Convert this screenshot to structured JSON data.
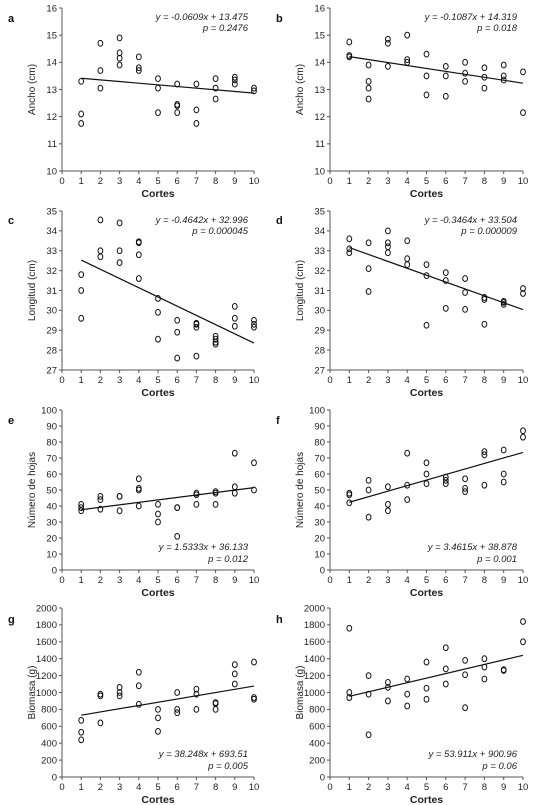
{
  "chart_data": [
    {
      "panel": "a",
      "type": "scatter",
      "xlabel": "Cortes",
      "ylabel": "Ancho (cm)",
      "xlim": [
        0,
        10
      ],
      "ylim": [
        10,
        16
      ],
      "xticks": [
        0,
        1,
        2,
        3,
        4,
        5,
        6,
        7,
        8,
        9,
        10
      ],
      "yticks": [
        10,
        11,
        12,
        13,
        14,
        15,
        16
      ],
      "x": [
        1,
        1,
        1,
        2,
        2,
        2,
        3,
        3,
        3,
        3,
        4,
        4,
        4,
        5,
        5,
        5,
        6,
        6,
        6,
        6,
        7,
        7,
        7,
        8,
        8,
        8,
        9,
        9,
        9,
        10,
        10
      ],
      "y": [
        11.75,
        12.1,
        13.3,
        13.05,
        13.7,
        14.7,
        13.9,
        14.15,
        14.35,
        14.9,
        13.7,
        13.8,
        14.2,
        12.15,
        13.05,
        13.4,
        12.15,
        12.4,
        12.45,
        13.2,
        11.75,
        12.25,
        13.2,
        12.65,
        13.05,
        13.4,
        13.2,
        13.35,
        13.45,
        12.95,
        13.05
      ],
      "trend": {
        "slope": -0.0609,
        "intercept": 13.475
      },
      "equation": "y = -0.0609x + 13.475",
      "pvalue": "p = 0.2476",
      "eq_pos": "top-right"
    },
    {
      "panel": "b",
      "type": "scatter",
      "xlabel": "Cortes",
      "ylabel": "Ancho (cm)",
      "xlim": [
        0,
        10
      ],
      "ylim": [
        10,
        16
      ],
      "xticks": [
        0,
        1,
        2,
        3,
        4,
        5,
        6,
        7,
        8,
        9,
        10
      ],
      "yticks": [
        10,
        11,
        12,
        13,
        14,
        15,
        16
      ],
      "x": [
        1,
        1,
        1,
        2,
        2,
        2,
        2,
        3,
        3,
        3,
        4,
        4,
        4,
        5,
        5,
        5,
        6,
        6,
        6,
        7,
        7,
        7,
        8,
        8,
        8,
        9,
        9,
        9,
        10,
        10
      ],
      "y": [
        14.2,
        14.25,
        14.75,
        12.65,
        13.05,
        13.3,
        13.9,
        13.85,
        14.7,
        14.85,
        14.0,
        14.1,
        15.0,
        12.8,
        13.5,
        14.3,
        12.75,
        13.5,
        13.85,
        13.3,
        13.6,
        14.0,
        13.05,
        13.45,
        13.8,
        13.35,
        13.5,
        13.9,
        12.15,
        13.65
      ],
      "trend": {
        "slope": -0.1087,
        "intercept": 14.319
      },
      "equation": "y = -0.1087x + 14.319",
      "pvalue": "p = 0.018",
      "eq_pos": "top-right"
    },
    {
      "panel": "c",
      "type": "scatter",
      "xlabel": "Cortes",
      "ylabel": "Longitud (cm)",
      "xlim": [
        0,
        10
      ],
      "ylim": [
        27,
        35
      ],
      "xticks": [
        0,
        1,
        2,
        3,
        4,
        5,
        6,
        7,
        8,
        9,
        10
      ],
      "yticks": [
        27,
        28,
        29,
        30,
        31,
        32,
        33,
        34,
        35
      ],
      "x": [
        1,
        1,
        1,
        2,
        2,
        2,
        3,
        3,
        3,
        4,
        4,
        4,
        4,
        5,
        5,
        5,
        6,
        6,
        6,
        7,
        7,
        7,
        7,
        8,
        8,
        8,
        8,
        9,
        9,
        9,
        10,
        10,
        10
      ],
      "y": [
        29.6,
        31.0,
        31.8,
        32.7,
        33.0,
        34.55,
        32.4,
        33.0,
        34.4,
        31.6,
        32.8,
        33.4,
        33.45,
        28.55,
        29.9,
        30.6,
        27.6,
        28.9,
        29.5,
        27.7,
        29.15,
        29.3,
        29.35,
        28.3,
        28.4,
        28.55,
        28.7,
        29.2,
        29.6,
        30.2,
        29.15,
        29.3,
        29.5
      ],
      "trend": {
        "slope": -0.4642,
        "intercept": 32.996
      },
      "equation": "y = -0.4642x + 32.996",
      "pvalue": "p = 0.000045",
      "eq_pos": "top-right"
    },
    {
      "panel": "d",
      "type": "scatter",
      "xlabel": "Cortes",
      "ylabel": "Longitud (cm)",
      "xlim": [
        0,
        10
      ],
      "ylim": [
        27,
        35
      ],
      "xticks": [
        0,
        1,
        2,
        3,
        4,
        5,
        6,
        7,
        8,
        9,
        10
      ],
      "yticks": [
        27,
        28,
        29,
        30,
        31,
        32,
        33,
        34,
        35
      ],
      "x": [
        1,
        1,
        1,
        2,
        2,
        2,
        3,
        3,
        3,
        3,
        4,
        4,
        4,
        5,
        5,
        5,
        6,
        6,
        6,
        7,
        7,
        7,
        8,
        8,
        8,
        9,
        9,
        9,
        10,
        10
      ],
      "y": [
        32.9,
        33.1,
        33.6,
        30.95,
        32.1,
        33.4,
        32.9,
        33.2,
        33.4,
        34.0,
        32.3,
        32.6,
        33.5,
        29.25,
        31.75,
        32.3,
        30.1,
        31.5,
        31.9,
        30.05,
        30.9,
        31.6,
        29.3,
        30.55,
        30.65,
        30.3,
        30.4,
        30.45,
        30.85,
        31.1
      ],
      "trend": {
        "slope": -0.3464,
        "intercept": 33.504
      },
      "equation": "y = -0.3464x + 33.504",
      "pvalue": "p = 0.000009",
      "eq_pos": "top-right"
    },
    {
      "panel": "e",
      "type": "scatter",
      "xlabel": "Cortes",
      "ylabel": "Número de hojas",
      "xlim": [
        0,
        10
      ],
      "ylim": [
        0,
        100
      ],
      "xticks": [
        0,
        1,
        2,
        3,
        4,
        5,
        6,
        7,
        8,
        9,
        10
      ],
      "yticks": [
        0,
        10,
        20,
        30,
        40,
        50,
        60,
        70,
        80,
        90,
        100
      ],
      "x": [
        1,
        1,
        1,
        2,
        2,
        2,
        3,
        3,
        3,
        4,
        4,
        4,
        4,
        5,
        5,
        5,
        6,
        6,
        6,
        7,
        7,
        7,
        8,
        8,
        8,
        9,
        9,
        9,
        10,
        10
      ],
      "y": [
        37,
        39,
        41,
        38,
        44,
        46,
        37,
        46,
        46,
        40,
        50,
        51,
        57,
        30,
        35,
        41,
        21,
        39,
        39,
        41,
        47,
        48,
        41,
        48,
        49,
        48,
        52,
        73,
        50,
        67
      ],
      "trend": {
        "slope": 1.5333,
        "intercept": 36.133
      },
      "equation": "y = 1.5333x + 36.133",
      "pvalue": "p = 0.012",
      "eq_pos": "bottom-right"
    },
    {
      "panel": "f",
      "type": "scatter",
      "xlabel": "Cortes",
      "ylabel": "Número de hojas",
      "xlim": [
        0,
        10
      ],
      "ylim": [
        0,
        100
      ],
      "xticks": [
        0,
        1,
        2,
        3,
        4,
        5,
        6,
        7,
        8,
        9,
        10
      ],
      "yticks": [
        0,
        10,
        20,
        30,
        40,
        50,
        60,
        70,
        80,
        90,
        100
      ],
      "x": [
        1,
        1,
        1,
        2,
        2,
        2,
        3,
        3,
        3,
        4,
        4,
        4,
        5,
        5,
        5,
        6,
        6,
        6,
        7,
        7,
        7,
        8,
        8,
        8,
        9,
        9,
        9,
        10,
        10
      ],
      "y": [
        42,
        47,
        48,
        33,
        50,
        56,
        37,
        41,
        52,
        44,
        53,
        73,
        54,
        60,
        67,
        54,
        56,
        58,
        49,
        51,
        57,
        53,
        72,
        74,
        55,
        60,
        75,
        83,
        87
      ],
      "trend": {
        "slope": 3.4615,
        "intercept": 38.878
      },
      "equation": "y = 3.4615x + 38.878",
      "pvalue": "p = 0.001",
      "eq_pos": "bottom-right"
    },
    {
      "panel": "g",
      "type": "scatter",
      "xlabel": "Cortes",
      "ylabel": "Biomasa (g)",
      "xlim": [
        0,
        10
      ],
      "ylim": [
        0,
        2000
      ],
      "xticks": [
        0,
        1,
        2,
        3,
        4,
        5,
        6,
        7,
        8,
        9,
        10
      ],
      "yticks": [
        0,
        200,
        400,
        600,
        800,
        1000,
        1200,
        1400,
        1600,
        1800,
        2000
      ],
      "x": [
        1,
        1,
        1,
        2,
        2,
        2,
        3,
        3,
        3,
        4,
        4,
        4,
        5,
        5,
        5,
        6,
        6,
        6,
        7,
        7,
        7,
        8,
        8,
        8,
        9,
        9,
        9,
        10,
        10,
        10
      ],
      "y": [
        440,
        530,
        670,
        640,
        960,
        980,
        960,
        1000,
        1060,
        860,
        1080,
        1240,
        540,
        700,
        800,
        760,
        800,
        1000,
        800,
        980,
        1040,
        800,
        870,
        880,
        1100,
        1220,
        1330,
        920,
        940,
        1360
      ],
      "trend": {
        "slope": 38.248,
        "intercept": 693.51
      },
      "equation": "y = 38.248x + 693.51",
      "pvalue": "p = 0.005",
      "eq_pos": "bottom-right"
    },
    {
      "panel": "h",
      "type": "scatter",
      "xlabel": "Cortes",
      "ylabel": "Biomasa (g)",
      "xlim": [
        0,
        10
      ],
      "ylim": [
        0,
        2000
      ],
      "xticks": [
        0,
        1,
        2,
        3,
        4,
        5,
        6,
        7,
        8,
        9,
        10
      ],
      "yticks": [
        0,
        200,
        400,
        600,
        800,
        1000,
        1200,
        1400,
        1600,
        1800,
        2000
      ],
      "x": [
        1,
        1,
        1,
        2,
        2,
        2,
        3,
        3,
        3,
        4,
        4,
        4,
        5,
        5,
        5,
        6,
        6,
        6,
        7,
        7,
        7,
        8,
        8,
        8,
        9,
        9,
        10,
        10
      ],
      "y": [
        940,
        1000,
        1760,
        500,
        980,
        1200,
        900,
        1060,
        1120,
        840,
        980,
        1160,
        920,
        1050,
        1360,
        1100,
        1280,
        1530,
        820,
        1210,
        1380,
        1160,
        1300,
        1400,
        1260,
        1270,
        1600,
        1840
      ],
      "trend": {
        "slope": 53.911,
        "intercept": 900.96
      },
      "equation": "y = 53.911x + 900.96",
      "pvalue": "p = 0.06",
      "eq_pos": "bottom-right"
    }
  ]
}
